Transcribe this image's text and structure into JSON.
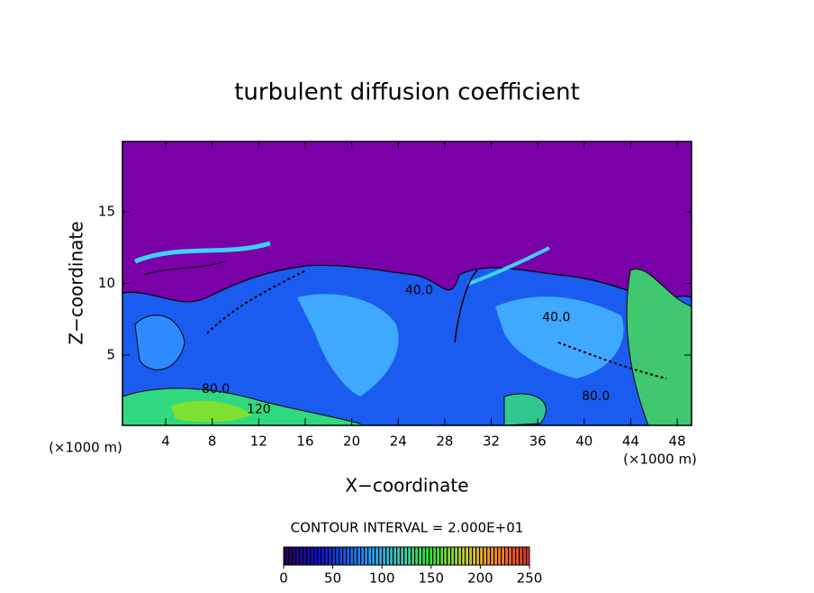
{
  "chart_data": {
    "type": "contour",
    "title": "turbulent diffusion coefficient",
    "xlabel": "X−coordinate",
    "ylabel": "Z−coordinate",
    "x_unit_left": "(×1000 m)",
    "x_unit_right": "(×1000 m)",
    "xlim": [
      0,
      49
    ],
    "ylim": [
      0,
      20
    ],
    "xticks": [
      4,
      8,
      12,
      16,
      20,
      24,
      28,
      32,
      36,
      40,
      44,
      48
    ],
    "yticks": [
      5,
      10,
      15
    ],
    "contour_interval_text": "CONTOUR INTERVAL = 2.000E+01",
    "colorbar_lim": [
      0,
      250
    ],
    "colorbar_ticks": [
      0,
      50,
      100,
      150,
      200,
      250
    ],
    "contour_labels": [
      {
        "x": 25.8,
        "y": 9.5,
        "value": 40,
        "label": "40.0"
      },
      {
        "x": 37.6,
        "y": 7.6,
        "value": 40,
        "label": "40.0"
      },
      {
        "x": 8.3,
        "y": 2.6,
        "value": 80,
        "label": "80.0"
      },
      {
        "x": 41,
        "y": 2.1,
        "value": 80,
        "label": "80.0"
      },
      {
        "x": 12,
        "y": 1.2,
        "value": 120,
        "label": "120"
      }
    ]
  }
}
